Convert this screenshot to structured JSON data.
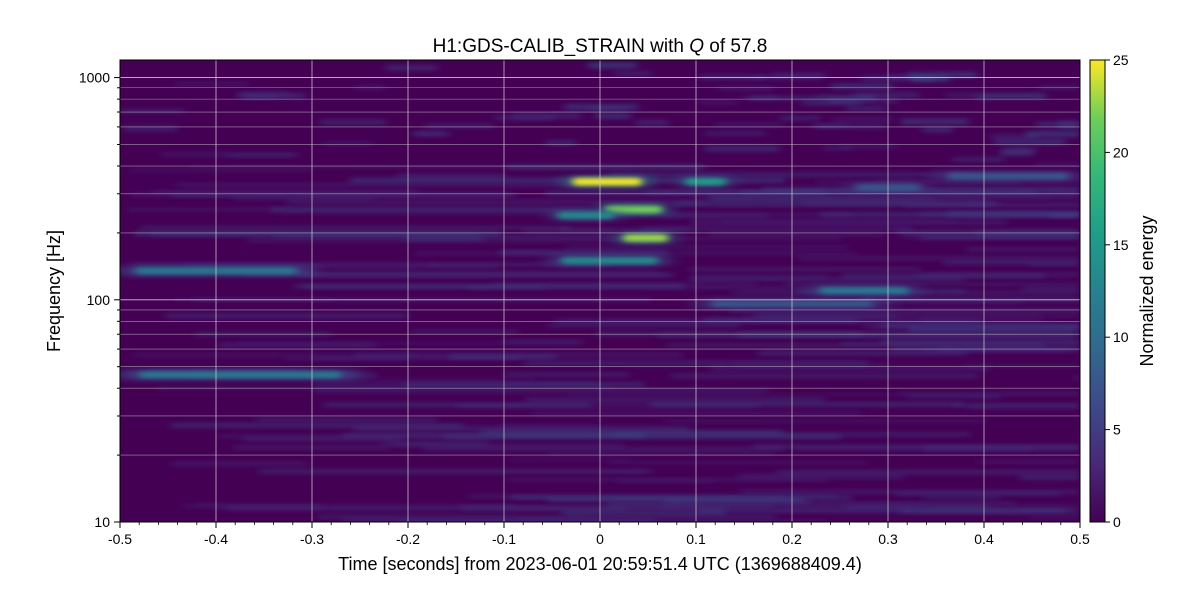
{
  "chart_data": {
    "type": "heatmap",
    "title_prefix": "H1:GDS-CALIB_STRAIN with ",
    "title_symbol": "Q",
    "title_suffix": " of 57.8",
    "xlabel": "Time [seconds] from 2023-06-01 20:59:51.4 UTC (1369688409.4)",
    "ylabel": "Frequency [Hz]",
    "xlim": [
      -0.5,
      0.5
    ],
    "ylim": [
      10,
      1200
    ],
    "yscale": "log",
    "x_ticks": [
      "-0.5",
      "-0.4",
      "-0.3",
      "-0.2",
      "-0.1",
      "0",
      "0.1",
      "0.2",
      "0.3",
      "0.4",
      "0.5"
    ],
    "y_ticks": [
      "10",
      "100",
      "1000"
    ],
    "grid": true,
    "colorbar": {
      "label": "Normalized energy",
      "range": [
        0,
        25
      ],
      "ticks": [
        "0",
        "5",
        "10",
        "15",
        "20",
        "25"
      ],
      "colormap": "viridis"
    },
    "bright_features": [
      {
        "time": 0.0,
        "time_span": [
          -0.035,
          0.05
        ],
        "frequency": 340,
        "energy": 25
      },
      {
        "time": 0.11,
        "time_span": [
          0.085,
          0.135
        ],
        "frequency": 340,
        "energy": 16
      },
      {
        "time": 0.03,
        "time_span": [
          0.0,
          0.07
        ],
        "frequency": 255,
        "energy": 22
      },
      {
        "time": -0.01,
        "time_span": [
          -0.05,
          0.02
        ],
        "frequency": 240,
        "energy": 14
      },
      {
        "time": 0.045,
        "time_span": [
          0.02,
          0.075
        ],
        "frequency": 190,
        "energy": 23
      },
      {
        "time": 0.0,
        "time_span": [
          -0.05,
          0.07
        ],
        "frequency": 150,
        "energy": 14
      },
      {
        "time": 0.28,
        "time_span": [
          0.22,
          0.33
        ],
        "frequency": 110,
        "energy": 12
      },
      {
        "time": -0.5,
        "time_span": [
          -0.5,
          -0.3
        ],
        "frequency": 135,
        "energy": 12
      },
      {
        "time": -0.5,
        "time_span": [
          -0.5,
          -0.25
        ],
        "frequency": 46,
        "energy": 12
      },
      {
        "time": 0.3,
        "time_span": [
          0.26,
          0.34
        ],
        "frequency": 320,
        "energy": 8
      },
      {
        "time": 0.45,
        "time_span": [
          0.35,
          0.5
        ],
        "frequency": 360,
        "energy": 8
      },
      {
        "time": 0.2,
        "time_span": [
          0.1,
          0.3
        ],
        "frequency": 96,
        "energy": 8
      }
    ],
    "colors": {
      "background": "#440154",
      "grid": "#cfcfcf"
    }
  }
}
